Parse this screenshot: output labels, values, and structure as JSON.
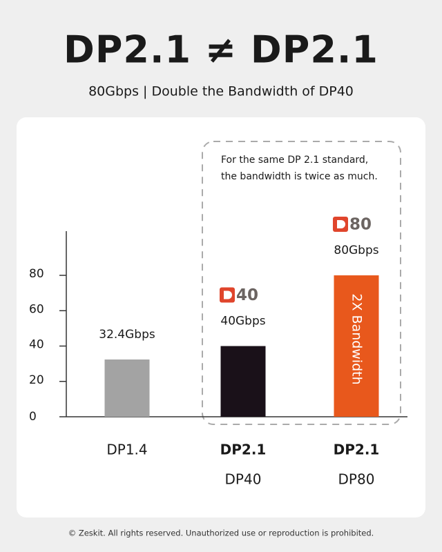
{
  "chart_data": {
    "type": "bar",
    "title": "DP2.1 ≠ DP2.1",
    "subtitle": "80Gbps | Double the Bandwidth of DP40",
    "categories": [
      "DP1.4",
      "DP2.1",
      "DP2.1"
    ],
    "subcategories": [
      null,
      "DP40",
      "DP80"
    ],
    "badges": [
      null,
      "40",
      "80"
    ],
    "values": [
      32.4,
      40,
      80
    ],
    "value_labels": [
      "32.4Gbps",
      "40Gbps",
      "80Gbps"
    ],
    "colors": [
      "#a3a3a3",
      "#1a1119",
      "#e8581c"
    ],
    "bar_annotation": "2X Bandwidth",
    "box_note": [
      "For the same DP 2.1 standard,",
      "the bandwidth is twice as much."
    ],
    "ylim": [
      0,
      105
    ],
    "yticks": [
      0,
      20,
      40,
      60,
      80
    ],
    "footer": "© Zeskit. All rights reserved. Unauthorized use or reproduction is prohibited."
  }
}
